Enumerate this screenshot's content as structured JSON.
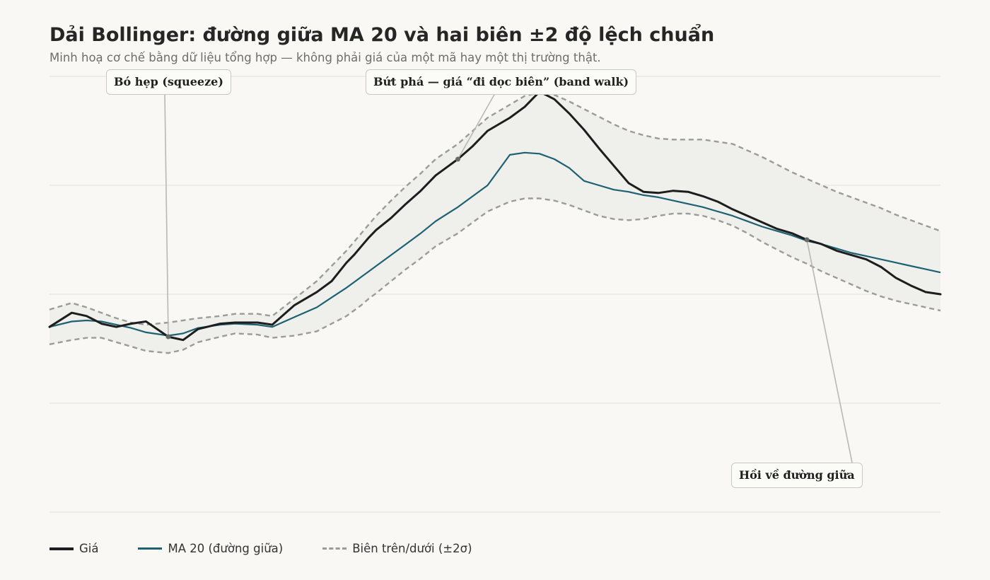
{
  "title": "Dải Bollinger: đường giữa MA 20 và hai biên ±2 độ lệch chuẩn",
  "subtitle": "Minh hoạ cơ chế bằng dữ liệu tổng hợp — không phải giá của một mã hay một thị trường thật.",
  "colors": {
    "background": "#f9f8f4",
    "price": "#1d1d1d",
    "ma": "#1d6173",
    "band": "#9b9b9b",
    "band_fill": "#efefec",
    "grid": "#e2e1dc"
  },
  "legend": {
    "price_label": "Giá",
    "ma_label": "MA 20 (đường giữa)",
    "band_label": "Biên trên/dưới (±2σ)"
  },
  "annotations": {
    "squeeze": "Bó hẹp (squeeze)",
    "breakout": "Bứt phá — giá “đi dọc biên” (band walk)",
    "revert": "Hồi về đường giữa"
  },
  "chart_data": {
    "type": "line",
    "title": "Dải Bollinger: đường giữa MA 20 và hai biên ±2 độ lệch chuẩn",
    "xlim": [
      0,
      120
    ],
    "ylim": [
      0,
      40
    ],
    "grid": true,
    "legend_position": "bottom-left",
    "x": [
      0,
      3,
      5,
      7,
      9,
      11,
      13,
      16,
      18,
      20,
      23,
      25,
      28,
      30,
      33,
      36,
      38,
      40,
      41,
      42,
      43,
      44,
      46,
      48,
      50,
      52,
      55,
      57,
      59,
      62,
      64,
      66,
      68,
      70,
      72,
      74,
      76,
      78,
      80,
      82,
      84,
      86,
      88,
      90,
      92,
      94,
      96,
      98,
      100,
      102,
      104,
      106,
      108,
      110,
      112,
      114,
      116,
      118,
      120
    ],
    "series": [
      {
        "name": "Giá",
        "values": [
          17,
          18.3,
          18,
          17.3,
          17,
          17.3,
          17.5,
          16.1,
          15.8,
          16.8,
          17.3,
          17.4,
          17.4,
          17.2,
          19,
          20.2,
          21.2,
          22.9,
          23.6,
          24.4,
          25.2,
          25.9,
          27,
          28.3,
          29.5,
          30.9,
          32.4,
          33.6,
          35,
          36.2,
          37.2,
          38.6,
          37.9,
          36.6,
          35.1,
          33.4,
          31.8,
          30.2,
          29.4,
          29.3,
          29.5,
          29.4,
          29,
          28.5,
          27.8,
          27.2,
          26.6,
          26,
          25.6,
          25,
          24.6,
          24,
          23.6,
          23.2,
          22.5,
          21.5,
          20.8,
          20.2,
          20
        ]
      },
      {
        "name": "MA 20 (đường giữa)",
        "values": [
          17,
          17.5,
          17.6,
          17.5,
          17.2,
          16.9,
          16.5,
          16.2,
          16.4,
          16.9,
          17.2,
          17.3,
          17.2,
          17,
          17.9,
          18.8,
          19.7,
          20.6,
          21.1,
          21.6,
          22.1,
          22.6,
          23.6,
          24.6,
          25.6,
          26.7,
          28,
          29,
          30,
          32.8,
          33,
          32.9,
          32.4,
          31.6,
          30.4,
          30,
          29.6,
          29.4,
          29.1,
          28.9,
          28.6,
          28.3,
          28,
          27.6,
          27.2,
          26.7,
          26.2,
          25.8,
          25.4,
          24.9,
          24.6,
          24.2,
          23.8,
          23.5,
          23.2,
          22.9,
          22.6,
          22.3,
          22
        ]
      },
      {
        "name": "Biên trên/dưới (±2σ)",
        "role": "upper",
        "values": [
          18.6,
          19.2,
          18.8,
          18.3,
          17.8,
          17.4,
          17.2,
          17.4,
          17.6,
          17.8,
          18,
          18.2,
          18.2,
          18,
          19.6,
          21.2,
          22.6,
          24,
          24.8,
          25.6,
          26.4,
          27.2,
          28.6,
          29.9,
          31.1,
          32.4,
          33.8,
          35,
          36.2,
          37.4,
          38.2,
          38.5,
          38.3,
          37.7,
          37,
          36.3,
          35.6,
          35,
          34.6,
          34.3,
          34.2,
          34.2,
          34.2,
          34,
          33.8,
          33.2,
          32.6,
          31.9,
          31.2,
          30.6,
          30,
          29.4,
          28.9,
          28.4,
          27.9,
          27.3,
          26.8,
          26.3,
          25.8
        ]
      },
      {
        "name": "Biên trên/dưới (±2σ)",
        "role": "lower",
        "values": [
          15.4,
          15.8,
          16,
          16,
          15.6,
          15.2,
          14.8,
          14.6,
          14.9,
          15.6,
          16.1,
          16.4,
          16.3,
          16,
          16.2,
          16.6,
          17.3,
          18,
          18.5,
          19,
          19.6,
          20.1,
          21.2,
          22.3,
          23.3,
          24.4,
          25.6,
          26.6,
          27.6,
          28.5,
          28.8,
          28.8,
          28.6,
          28.2,
          27.7,
          27.2,
          26.9,
          26.8,
          26.9,
          27.2,
          27.4,
          27.4,
          27.2,
          26.8,
          26.3,
          25.6,
          24.8,
          24.1,
          23.4,
          22.8,
          22.1,
          21.5,
          20.9,
          20.3,
          19.8,
          19.4,
          19.1,
          18.8,
          18.5
        ]
      }
    ]
  }
}
